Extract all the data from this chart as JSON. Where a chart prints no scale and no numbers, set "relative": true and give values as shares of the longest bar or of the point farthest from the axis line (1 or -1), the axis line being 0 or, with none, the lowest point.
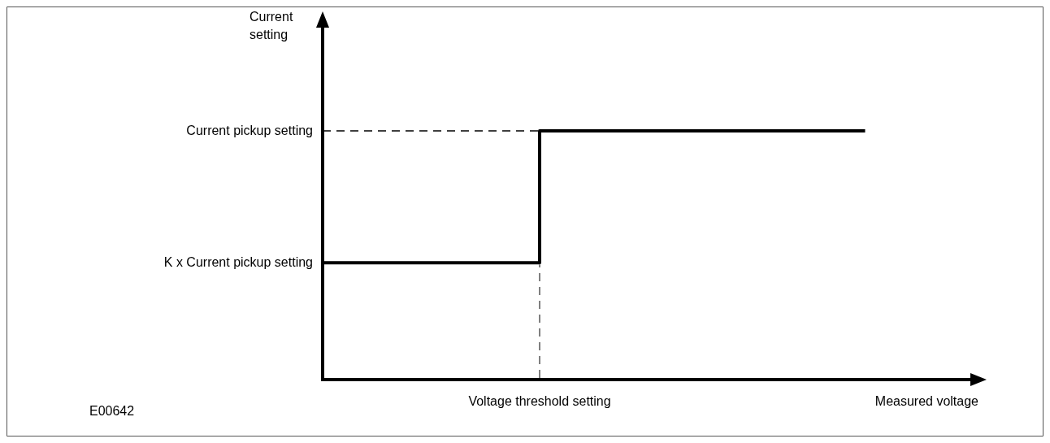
{
  "chart_data": {
    "type": "step",
    "relative": true,
    "xlabel": "Measured voltage",
    "categories": [
      null,
      null,
      null,
      null,
      null,
      null,
      null
    ],
    "series": [
      {
        "color": "#000000",
        "values": [
          0.47,
          0.47,
          1,
          1,
          1,
          1,
          null
        ]
      }
    ],
    "ref_lines": [
      {
        "axis": "y",
        "value": 1,
        "label": "Current pickup setting",
        "line_style": "dashed"
      }
    ],
    "annotations": [
      "Current setting",
      "K x Current pickup setting",
      "Voltage threshold setting",
      "E00642"
    ],
    "legend": false
  }
}
